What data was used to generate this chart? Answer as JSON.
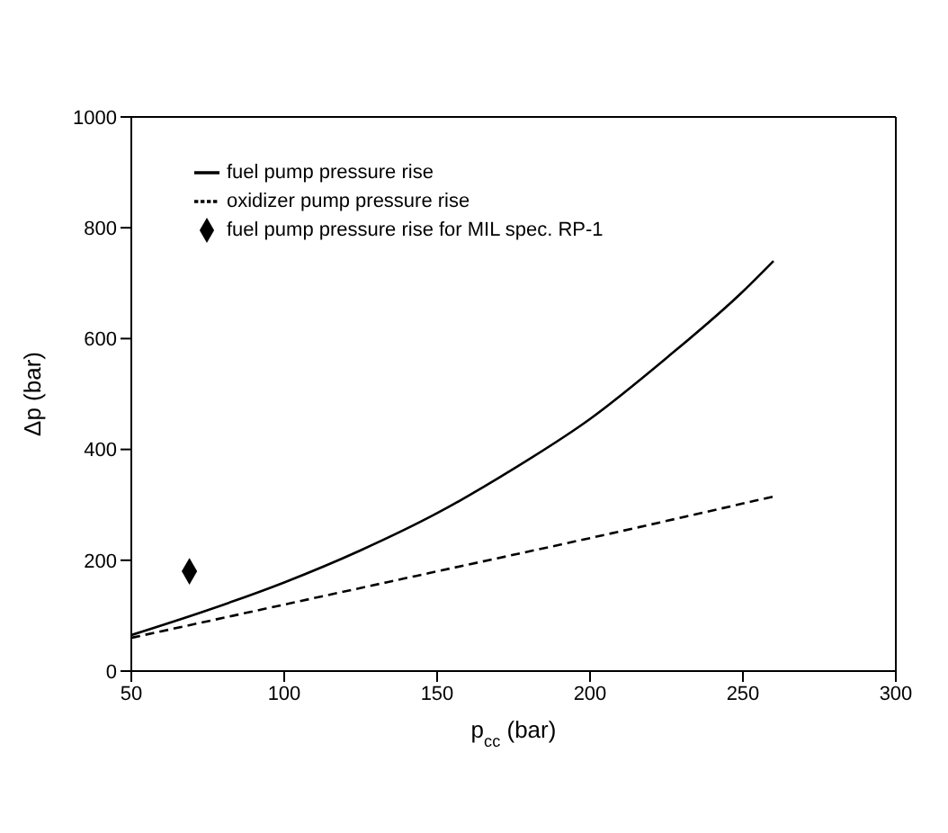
{
  "chart_data": {
    "type": "line",
    "xlabel": "p$_{cc}$ (bar)",
    "ylabel": "Δp (bar)",
    "xlim": [
      50,
      300
    ],
    "xticks": [
      50,
      100,
      150,
      200,
      250,
      300
    ],
    "ylim": [
      0,
      1000
    ],
    "yticks": [
      0,
      200,
      400,
      600,
      800,
      1000
    ],
    "legend": "top left",
    "series": [
      {
        "name": "fuel pump pressure rise",
        "color": "#000000",
        "line_style": "solid",
        "marker": "none",
        "x": [
          50,
          75,
          100,
          125,
          150,
          175,
          200,
          225,
          250,
          260
        ],
        "values": [
          65,
          110,
          160,
          218,
          285,
          365,
          455,
          565,
          685,
          740
        ]
      },
      {
        "name": "oxidizer pump pressure rise",
        "color": "#000000",
        "line_style": "dashed",
        "marker": "none",
        "x": [
          50,
          100,
          150,
          200,
          260
        ],
        "values": [
          60,
          120,
          180,
          240,
          315
        ]
      },
      {
        "name": "fuel pump pressure rise for MIL spec. RP-1",
        "type": "scatter",
        "color": "#000000",
        "marker": "diamond",
        "x": [
          69
        ],
        "values": [
          180
        ]
      }
    ]
  }
}
